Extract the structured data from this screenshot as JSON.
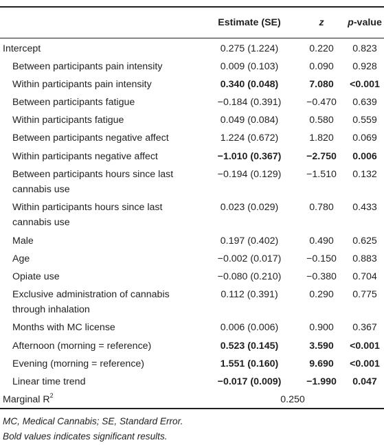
{
  "header": {
    "col1": "Estimate (SE)",
    "col2": "z",
    "col3_prefix": "p",
    "col3_suffix": "-value"
  },
  "rows": [
    {
      "label": "Intercept",
      "est": "0.275 (1.224)",
      "z": "0.220",
      "p": "0.823",
      "bold": false,
      "indent": false
    },
    {
      "label": "Between participants pain intensity",
      "est": "0.009 (0.103)",
      "z": "0.090",
      "p": "0.928",
      "bold": false,
      "indent": true
    },
    {
      "label": "Within participants pain intensity",
      "est": "0.340 (0.048)",
      "z": "7.080",
      "p": "<0.001",
      "bold": true,
      "indent": true
    },
    {
      "label": "Between participants fatigue",
      "est": "−0.184 (0.391)",
      "z": "−0.470",
      "p": "0.639",
      "bold": false,
      "indent": true
    },
    {
      "label": "Within participants fatigue",
      "est": "0.049 (0.084)",
      "z": "0.580",
      "p": "0.559",
      "bold": false,
      "indent": true
    },
    {
      "label": "Between participants negative affect",
      "est": "1.224 (0.672)",
      "z": "1.820",
      "p": "0.069",
      "bold": false,
      "indent": true
    },
    {
      "label": "Within participants negative affect",
      "est": "−1.010 (0.367)",
      "z": "−2.750",
      "p": "0.006",
      "bold": true,
      "indent": true
    },
    {
      "label": "Between participants hours since last cannabis use",
      "est": "−0.194 (0.129)",
      "z": "−1.510",
      "p": "0.132",
      "bold": false,
      "indent": true
    },
    {
      "label": "Within participants hours since last cannabis use",
      "est": "0.023 (0.029)",
      "z": "0.780",
      "p": "0.433",
      "bold": false,
      "indent": true
    },
    {
      "label": "Male",
      "est": "0.197 (0.402)",
      "z": "0.490",
      "p": "0.625",
      "bold": false,
      "indent": true
    },
    {
      "label": "Age",
      "est": "−0.002 (0.017)",
      "z": "−0.150",
      "p": "0.883",
      "bold": false,
      "indent": true
    },
    {
      "label": "Opiate use",
      "est": "−0.080 (0.210)",
      "z": "−0.380",
      "p": "0.704",
      "bold": false,
      "indent": true
    },
    {
      "label": "Exclusive administration of cannabis through inhalation",
      "est": "0.112 (0.391)",
      "z": "0.290",
      "p": "0.775",
      "bold": false,
      "indent": true
    },
    {
      "label": "Months with MC license",
      "est": "0.006 (0.006)",
      "z": "0.900",
      "p": "0.367",
      "bold": false,
      "indent": true
    },
    {
      "label": "Afternoon (morning = reference)",
      "est": "0.523 (0.145)",
      "z": "3.590",
      "p": "<0.001",
      "bold": true,
      "indent": true
    },
    {
      "label": "Evening (morning = reference)",
      "est": "1.551 (0.160)",
      "z": "9.690",
      "p": "<0.001",
      "bold": true,
      "indent": true
    },
    {
      "label": "Linear time trend",
      "est": "−0.017 (0.009)",
      "z": "−1.990",
      "p": "0.047",
      "bold": true,
      "indent": true
    }
  ],
  "marginal": {
    "label": "Marginal R",
    "sup": "2",
    "value": "0.250"
  },
  "footnotes": [
    "MC, Medical Cannabis; SE, Standard Error.",
    "Bold values indicates significant results."
  ]
}
